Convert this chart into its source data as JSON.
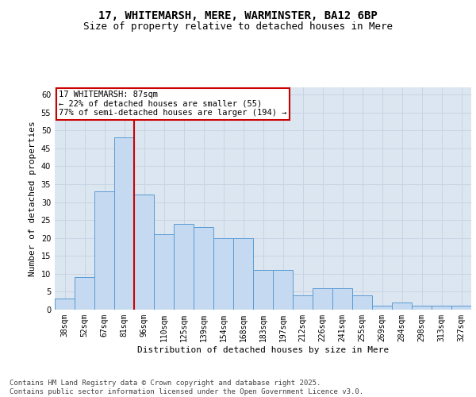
{
  "title_line1": "17, WHITEMARSH, MERE, WARMINSTER, BA12 6BP",
  "title_line2": "Size of property relative to detached houses in Mere",
  "xlabel": "Distribution of detached houses by size in Mere",
  "ylabel": "Number of detached properties",
  "categories": [
    "38sqm",
    "52sqm",
    "67sqm",
    "81sqm",
    "96sqm",
    "110sqm",
    "125sqm",
    "139sqm",
    "154sqm",
    "168sqm",
    "183sqm",
    "197sqm",
    "212sqm",
    "226sqm",
    "241sqm",
    "255sqm",
    "269sqm",
    "284sqm",
    "298sqm",
    "313sqm",
    "327sqm"
  ],
  "values": [
    3,
    9,
    33,
    48,
    32,
    21,
    24,
    23,
    20,
    20,
    11,
    11,
    4,
    6,
    6,
    4,
    1,
    2,
    1,
    1,
    1
  ],
  "bar_color": "#c5d9f0",
  "bar_edge_color": "#5b9bd5",
  "vline_color": "#cc0000",
  "vline_x_index": 3.5,
  "annotation_text": "17 WHITEMARSH: 87sqm\n← 22% of detached houses are smaller (55)\n77% of semi-detached houses are larger (194) →",
  "annotation_box_color": "#ffffff",
  "annotation_box_edge": "#cc0000",
  "ylim": [
    0,
    62
  ],
  "yticks": [
    0,
    5,
    10,
    15,
    20,
    25,
    30,
    35,
    40,
    45,
    50,
    55,
    60
  ],
  "grid_color": "#c8d4e3",
  "plot_bg_color": "#dce6f1",
  "footer_text": "Contains HM Land Registry data © Crown copyright and database right 2025.\nContains public sector information licensed under the Open Government Licence v3.0.",
  "title_fontsize": 10,
  "subtitle_fontsize": 9,
  "axis_label_fontsize": 8,
  "tick_fontsize": 7,
  "annotation_fontsize": 7.5,
  "footer_fontsize": 6.5
}
